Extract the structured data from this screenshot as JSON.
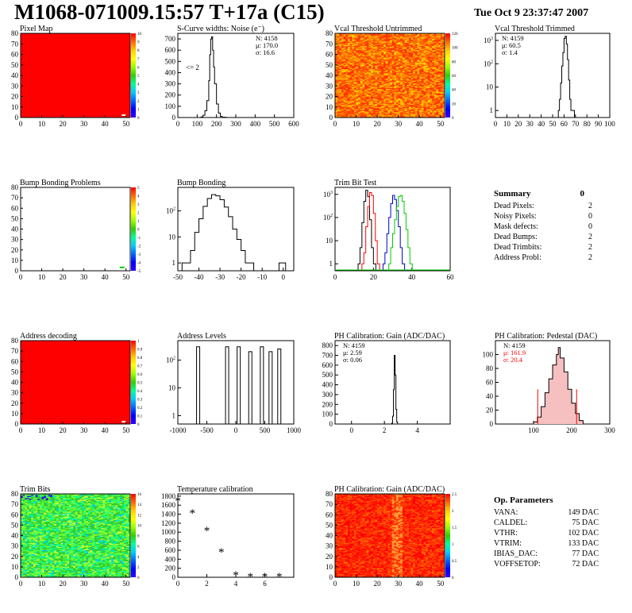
{
  "header": {
    "title": "M1068-071009.15:57 T+17a (C15)",
    "date": "Tue Oct  9 23:37:47 2007"
  },
  "colors": {
    "red": "#ff0000",
    "green": "#00cc00",
    "blue": "#0000cc",
    "black": "#000000"
  },
  "summary": {
    "heading": "Summary",
    "total": "0",
    "rows": [
      {
        "label": "Dead Pixels:",
        "value": "2"
      },
      {
        "label": "Noisy Pixels:",
        "value": "0"
      },
      {
        "label": "Mask defects:",
        "value": "0"
      },
      {
        "label": "Dead Bumps:",
        "value": "2"
      },
      {
        "label": "Dead Trimbits:",
        "value": "2"
      },
      {
        "label": "Address Probl:",
        "value": "2"
      }
    ]
  },
  "op_parameters": {
    "heading": "Op. Parameters",
    "rows": [
      {
        "label": "VANA:",
        "value": "149 DAC"
      },
      {
        "label": "CALDEL:",
        "value": "75 DAC"
      },
      {
        "label": "VTHR:",
        "value": "102 DAC"
      },
      {
        "label": "VTRIM:",
        "value": "133 DAC"
      },
      {
        "label": "IBIAS_DAC:",
        "value": "77 DAC"
      },
      {
        "label": "VOFFSETOP:",
        "value": "72 DAC"
      }
    ]
  },
  "chart_data": [
    {
      "id": "pixel_map",
      "type": "heatmap",
      "title": "Pixel Map",
      "xlim": [
        0,
        52
      ],
      "ylim": [
        0,
        80
      ],
      "xticks": [
        0,
        10,
        20,
        30,
        40,
        50
      ],
      "yticks": [
        0,
        10,
        20,
        30,
        40,
        50,
        60,
        70,
        80
      ],
      "fill": "uniform_max",
      "zlim": [
        0,
        10
      ],
      "zticks": [
        0,
        1,
        2,
        3,
        4,
        5,
        6,
        7,
        8,
        9,
        10
      ]
    },
    {
      "id": "scurve",
      "type": "line",
      "title": "S-Curve widths: Noise (e⁻)",
      "xlim": [
        0,
        600
      ],
      "ylim": [
        0,
        750
      ],
      "xticks": [
        0,
        100,
        200,
        300,
        400,
        500,
        600
      ],
      "yticks": [
        0,
        100,
        200,
        300,
        400,
        500,
        600,
        700
      ],
      "stats": [
        "N: 4158",
        "μ: 170.0",
        "σ: 16.6"
      ],
      "annotation": "<= 2",
      "x": [
        100,
        120,
        130,
        140,
        150,
        160,
        165,
        170,
        175,
        180,
        185,
        190,
        200,
        210,
        220,
        230,
        250
      ],
      "y": [
        0,
        5,
        20,
        60,
        150,
        330,
        560,
        700,
        720,
        600,
        450,
        300,
        120,
        40,
        10,
        3,
        0
      ]
    },
    {
      "id": "vcal_untrimmed",
      "type": "heatmap",
      "title": "Vcal Threshold Untrimmed",
      "xlim": [
        0,
        52
      ],
      "ylim": [
        0,
        80
      ],
      "xticks": [
        0,
        10,
        20,
        30,
        40,
        50
      ],
      "yticks": [
        0,
        10,
        20,
        30,
        40,
        50,
        60,
        70,
        80
      ],
      "fill": "noise_orange",
      "zticks": [
        0,
        20,
        40,
        60,
        80,
        100,
        120
      ]
    },
    {
      "id": "vcal_trimmed",
      "type": "line",
      "title": "Vcal Threshold Trimmed",
      "xlim": [
        0,
        100
      ],
      "log_y": true,
      "ylim": [
        0.5,
        2000
      ],
      "xticks": [
        0,
        10,
        20,
        30,
        40,
        50,
        60,
        70,
        80,
        90,
        100
      ],
      "yticks": [
        1,
        10,
        100,
        1000
      ],
      "stats": [
        "N: 4159",
        "μ: 60.5",
        "σ:  1.4"
      ],
      "x": [
        55,
        56,
        57,
        58,
        59,
        60,
        61,
        62,
        63,
        64,
        65,
        66,
        67
      ],
      "y": [
        1,
        3,
        15,
        80,
        300,
        1200,
        1500,
        700,
        150,
        20,
        3,
        1,
        1
      ]
    },
    {
      "id": "bump_problems",
      "type": "heatmap",
      "title": "Bump Bonding Problems",
      "xlim": [
        0,
        52
      ],
      "ylim": [
        0,
        80
      ],
      "xticks": [
        0,
        10,
        20,
        30,
        40,
        50
      ],
      "yticks": [
        0,
        10,
        20,
        30,
        40,
        50,
        60,
        70,
        80
      ],
      "fill": "empty",
      "zlim": [
        -5,
        5
      ],
      "zticks": [
        -5,
        -4,
        -3,
        -2,
        -1,
        0,
        1,
        2,
        3,
        4,
        5
      ]
    },
    {
      "id": "bump_bonding",
      "type": "line",
      "title": "Bump Bonding",
      "xlim": [
        -50,
        5
      ],
      "log_y": true,
      "ylim": [
        0.5,
        800
      ],
      "xticks": [
        -50,
        -40,
        -30,
        -20,
        -10,
        0
      ],
      "yticks": [
        1,
        10,
        100
      ],
      "x": [
        -48,
        -46,
        -44,
        -42,
        -40,
        -38,
        -36,
        -34,
        -32,
        -30,
        -28,
        -26,
        -24,
        -22,
        -20,
        -18,
        -16,
        -14,
        -2,
        0
      ],
      "y": [
        1,
        1,
        3,
        15,
        50,
        150,
        300,
        420,
        380,
        270,
        140,
        60,
        20,
        8,
        3,
        1,
        1,
        0.5,
        1,
        1
      ]
    },
    {
      "id": "trim_bit_test",
      "type": "line",
      "title": "Trim Bit Test",
      "xlim": [
        0,
        60
      ],
      "log_y": true,
      "ylim": [
        0.5,
        2000
      ],
      "xticks": [
        0,
        20,
        40,
        60
      ],
      "yticks": [
        1,
        10,
        100,
        1000
      ],
      "series": [
        {
          "color": "black",
          "x": [
            12,
            13,
            14,
            15,
            16,
            17,
            18,
            19,
            20
          ],
          "y": [
            1,
            5,
            60,
            500,
            1500,
            800,
            80,
            5,
            1
          ]
        },
        {
          "color": "red",
          "x": [
            14,
            15,
            16,
            17,
            18,
            19,
            20,
            21,
            22
          ],
          "y": [
            1,
            3,
            40,
            300,
            1200,
            900,
            150,
            10,
            1
          ]
        },
        {
          "color": "blue",
          "x": [
            25,
            26,
            27,
            28,
            29,
            30,
            31,
            32,
            33,
            34,
            35
          ],
          "y": [
            1,
            3,
            20,
            100,
            400,
            900,
            600,
            200,
            40,
            5,
            1
          ]
        },
        {
          "color": "green",
          "x": [
            28,
            29,
            30,
            31,
            32,
            33,
            34,
            35,
            36,
            37,
            38,
            39
          ],
          "y": [
            1,
            5,
            20,
            80,
            300,
            800,
            900,
            500,
            150,
            30,
            5,
            1
          ]
        }
      ]
    },
    {
      "id": "address_decoding",
      "type": "heatmap",
      "title": "Address decoding",
      "xlim": [
        0,
        52
      ],
      "ylim": [
        0,
        80
      ],
      "xticks": [
        0,
        10,
        20,
        30,
        40,
        50
      ],
      "yticks": [
        0,
        10,
        20,
        30,
        40,
        50,
        60,
        70,
        80
      ],
      "fill": "uniform_max",
      "zlim": [
        0,
        1
      ],
      "zticks": [
        0,
        0.1,
        0.2,
        0.3,
        0.4,
        0.5,
        0.6,
        0.7,
        0.8,
        0.9,
        1
      ]
    },
    {
      "id": "address_levels",
      "type": "line",
      "title": "Address Levels",
      "xlim": [
        -1000,
        1000
      ],
      "log_y": true,
      "ylim": [
        0.5,
        500
      ],
      "xticks": [
        -1000,
        -500,
        0,
        500,
        1000
      ],
      "yticks": [
        1,
        10,
        100
      ],
      "peaks": [
        -650,
        -150,
        50,
        250,
        450,
        600,
        750
      ],
      "peak_heights": [
        300,
        300,
        300,
        200,
        300,
        200,
        250
      ]
    },
    {
      "id": "ph_gain",
      "type": "line",
      "title": "PH Calibration: Gain (ADC/DAC)",
      "xlim": [
        -1,
        6
      ],
      "ylim": [
        0,
        850
      ],
      "xticks": [
        0,
        2,
        4
      ],
      "yticks": [
        0,
        100,
        200,
        300,
        400,
        500,
        600,
        700,
        800
      ],
      "stats": [
        "N: 4159",
        "μ: 2.59",
        "σ: 0.06"
      ],
      "x": [
        2.4,
        2.45,
        2.5,
        2.55,
        2.6,
        2.65,
        2.7,
        2.75,
        2.8
      ],
      "y": [
        0,
        10,
        80,
        350,
        700,
        500,
        150,
        20,
        0
      ]
    },
    {
      "id": "ph_pedestal",
      "type": "line",
      "title": "PH Calibration: Pedestal (DAC)",
      "xlim": [
        0,
        300
      ],
      "ylim": [
        0,
        120
      ],
      "xticks": [
        100,
        200,
        300
      ],
      "yticks": [
        0,
        20,
        40,
        60,
        80,
        100
      ],
      "stats": [
        "N: 4159",
        "μ: 161.9",
        "σ: 20.4"
      ],
      "x": [
        80,
        100,
        110,
        120,
        130,
        140,
        150,
        160,
        165,
        170,
        180,
        190,
        200,
        210,
        220,
        230
      ],
      "y": [
        0,
        3,
        10,
        25,
        45,
        65,
        85,
        100,
        110,
        95,
        75,
        50,
        30,
        15,
        5,
        0
      ],
      "fit_bounds": [
        111,
        213
      ]
    },
    {
      "id": "trim_bits",
      "type": "heatmap",
      "title": "Trim Bits",
      "xlim": [
        0,
        52
      ],
      "ylim": [
        0,
        80
      ],
      "xticks": [
        0,
        10,
        20,
        30,
        40,
        50
      ],
      "yticks": [
        0,
        10,
        20,
        30,
        40,
        50,
        60,
        70,
        80
      ],
      "fill": "noise_green",
      "zlim": [
        0,
        16
      ],
      "zticks": [
        0,
        2,
        4,
        6,
        8,
        10,
        12,
        14,
        16
      ]
    },
    {
      "id": "temperature",
      "type": "scatter",
      "title": "Temperature calibration",
      "xlim": [
        0,
        8
      ],
      "ylim": [
        0,
        1850
      ],
      "xticks": [
        0,
        2,
        4,
        6
      ],
      "yticks": [
        0,
        200,
        400,
        600,
        800,
        1000,
        1200,
        1400,
        1600,
        1800
      ],
      "x": [
        0,
        1,
        2,
        3,
        4,
        5,
        6,
        7
      ],
      "y": [
        1700,
        1430,
        1040,
        560,
        50,
        20,
        20,
        20
      ]
    },
    {
      "id": "ph_gain_map",
      "type": "heatmap",
      "title": "PH Calibration: Gain (ADC/DAC)",
      "xlim": [
        0,
        52
      ],
      "ylim": [
        0,
        80
      ],
      "xticks": [
        0,
        10,
        20,
        30,
        40,
        50
      ],
      "yticks": [
        0,
        10,
        20,
        30,
        40,
        50,
        60,
        70,
        80
      ],
      "fill": "noise_red",
      "zlim": [
        0,
        2.6
      ],
      "zticks": [
        0,
        0.5,
        1,
        1.5,
        2,
        2.5
      ]
    }
  ]
}
